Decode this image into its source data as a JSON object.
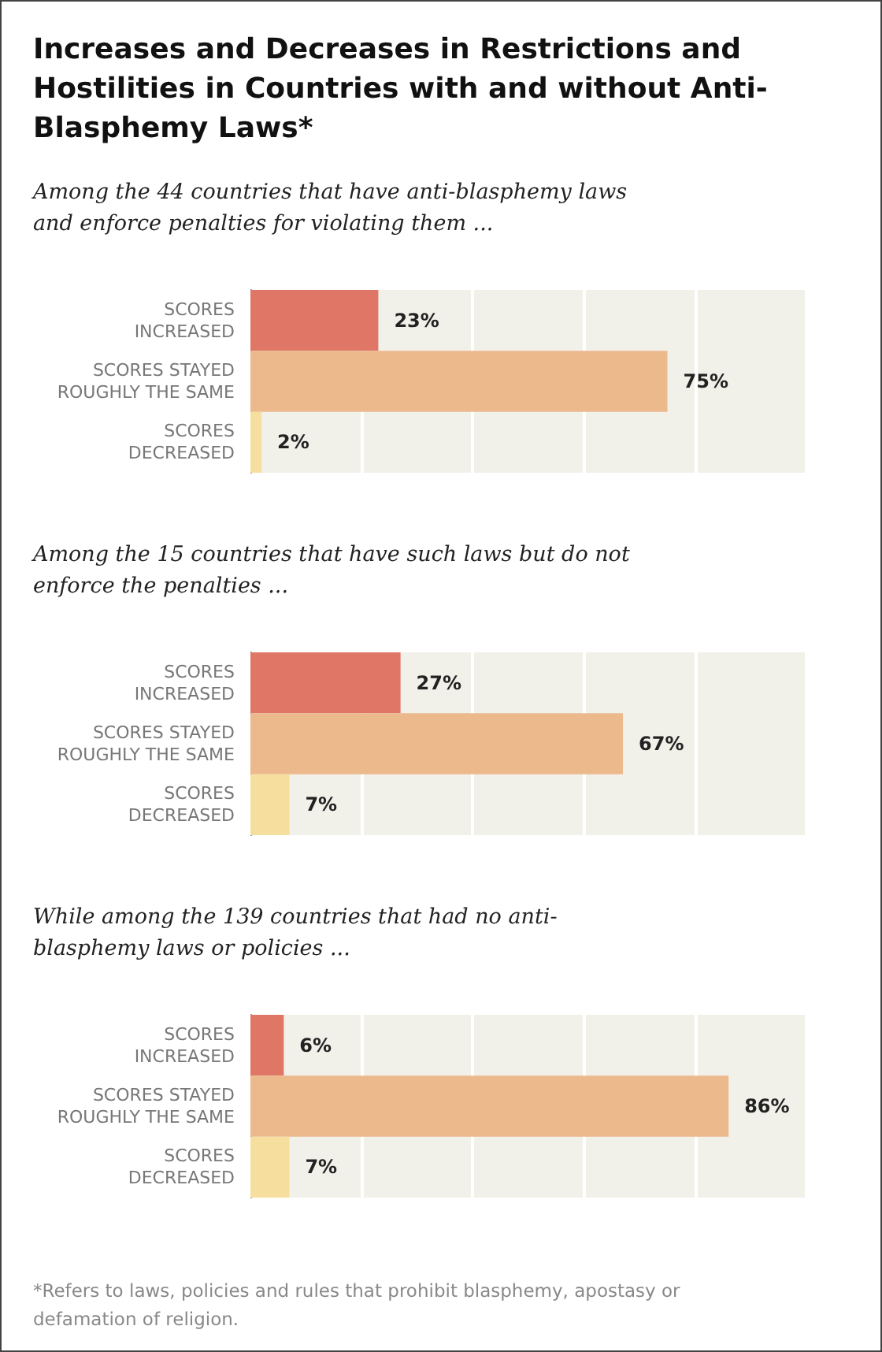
{
  "chart_data": [
    {
      "type": "bar",
      "orientation": "horizontal",
      "title": "Increases and Decreases in Restrictions and Hostilities in Countries with and without Anti-Blasphemy Laws*",
      "subtitle": "Among the 44 countries that have anti-blasphemy laws and enforce penalties for violating them ...",
      "categories": [
        "SCORES\nINCREASED",
        "SCORES STAYED\nROUGHLY THE SAME",
        "SCORES\nDECREASED"
      ],
      "values": [
        23,
        75,
        2
      ],
      "value_labels": [
        "23%",
        "75%",
        "2%"
      ],
      "colors": [
        "#e07766",
        "#ecb98d",
        "#f6df9e"
      ],
      "xlim": [
        0,
        100
      ],
      "xticks": [
        {
          "value": 0,
          "label": null
        },
        {
          "value": 20,
          "label": null
        },
        {
          "value": 40,
          "label": null
        },
        {
          "value": 60,
          "label": null
        },
        {
          "value": 80,
          "label": null
        },
        {
          "value": 100,
          "label": null
        }
      ],
      "grid": "x",
      "tick_labels": "y"
    },
    {
      "type": "bar",
      "orientation": "horizontal",
      "subtitle": "Among the 15 countries that have such laws but do not enforce the penalties ...",
      "categories": [
        "SCORES\nINCREASED",
        "SCORES STAYED\nROUGHLY THE SAME",
        "SCORES\nDECREASED"
      ],
      "values": [
        27,
        67,
        7
      ],
      "value_labels": [
        "27%",
        "67%",
        "7%"
      ],
      "colors": [
        "#e07766",
        "#ecb98d",
        "#f6df9e"
      ],
      "xlim": [
        0,
        100
      ],
      "xticks": [
        {
          "value": 0,
          "label": null
        },
        {
          "value": 20,
          "label": null
        },
        {
          "value": 40,
          "label": null
        },
        {
          "value": 60,
          "label": null
        },
        {
          "value": 80,
          "label": null
        },
        {
          "value": 100,
          "label": null
        }
      ],
      "grid": "x",
      "tick_labels": "y"
    },
    {
      "type": "bar",
      "orientation": "horizontal",
      "subtitle": "While among the 139 countries that had no anti-blasphemy laws or policies ...",
      "categories": [
        "SCORES\nINCREASED",
        "SCORES STAYED\nROUGHLY THE SAME",
        "SCORES\nDECREASED"
      ],
      "values": [
        6,
        86,
        7
      ],
      "value_labels": [
        "6%",
        "86%",
        "7%"
      ],
      "colors": [
        "#e07766",
        "#ecb98d",
        "#f6df9e"
      ],
      "xlim": [
        0,
        100
      ],
      "xticks": [
        {
          "value": 0,
          "label": null
        },
        {
          "value": 20,
          "label": null
        },
        {
          "value": 40,
          "label": null
        },
        {
          "value": 60,
          "label": null
        },
        {
          "value": 80,
          "label": null
        },
        {
          "value": 100,
          "label": null
        }
      ],
      "grid": "x",
      "tick_labels": "y",
      "annotations": [
        "*Refers to laws, policies and rules that prohibit blasphemy, apostasy or defamation of religion."
      ]
    }
  ]
}
